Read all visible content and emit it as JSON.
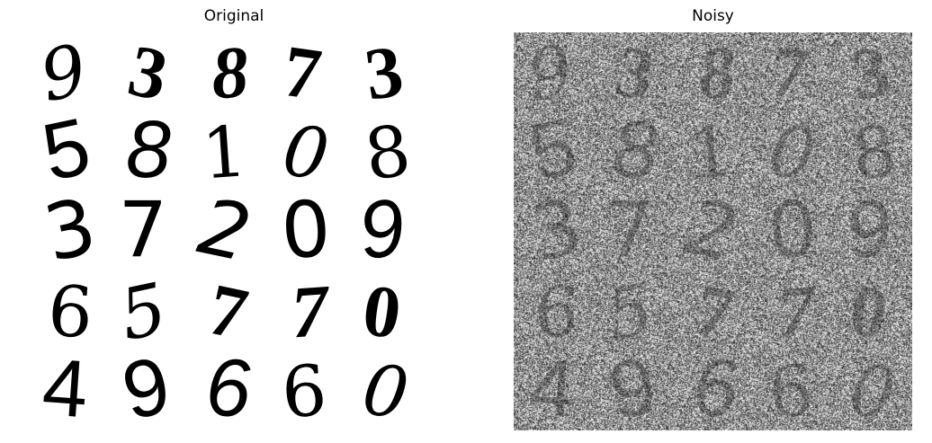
{
  "panels": {
    "original": {
      "title": "Original"
    },
    "noisy": {
      "title": "Noisy"
    }
  },
  "grid": {
    "rows": 5,
    "cols": 5,
    "digits": [
      [
        "9",
        "3",
        "8",
        "7",
        "3"
      ],
      [
        "5",
        "8",
        "1",
        "0",
        "8"
      ],
      [
        "3",
        "7",
        "2",
        "0",
        "9"
      ],
      [
        "6",
        "5",
        "7",
        "7",
        "0"
      ],
      [
        "4",
        "9",
        "6",
        "6",
        "0"
      ]
    ]
  },
  "colors": {
    "ink": "#000000",
    "paper": "#ffffff",
    "noise_mid": "#7f7f7f"
  }
}
